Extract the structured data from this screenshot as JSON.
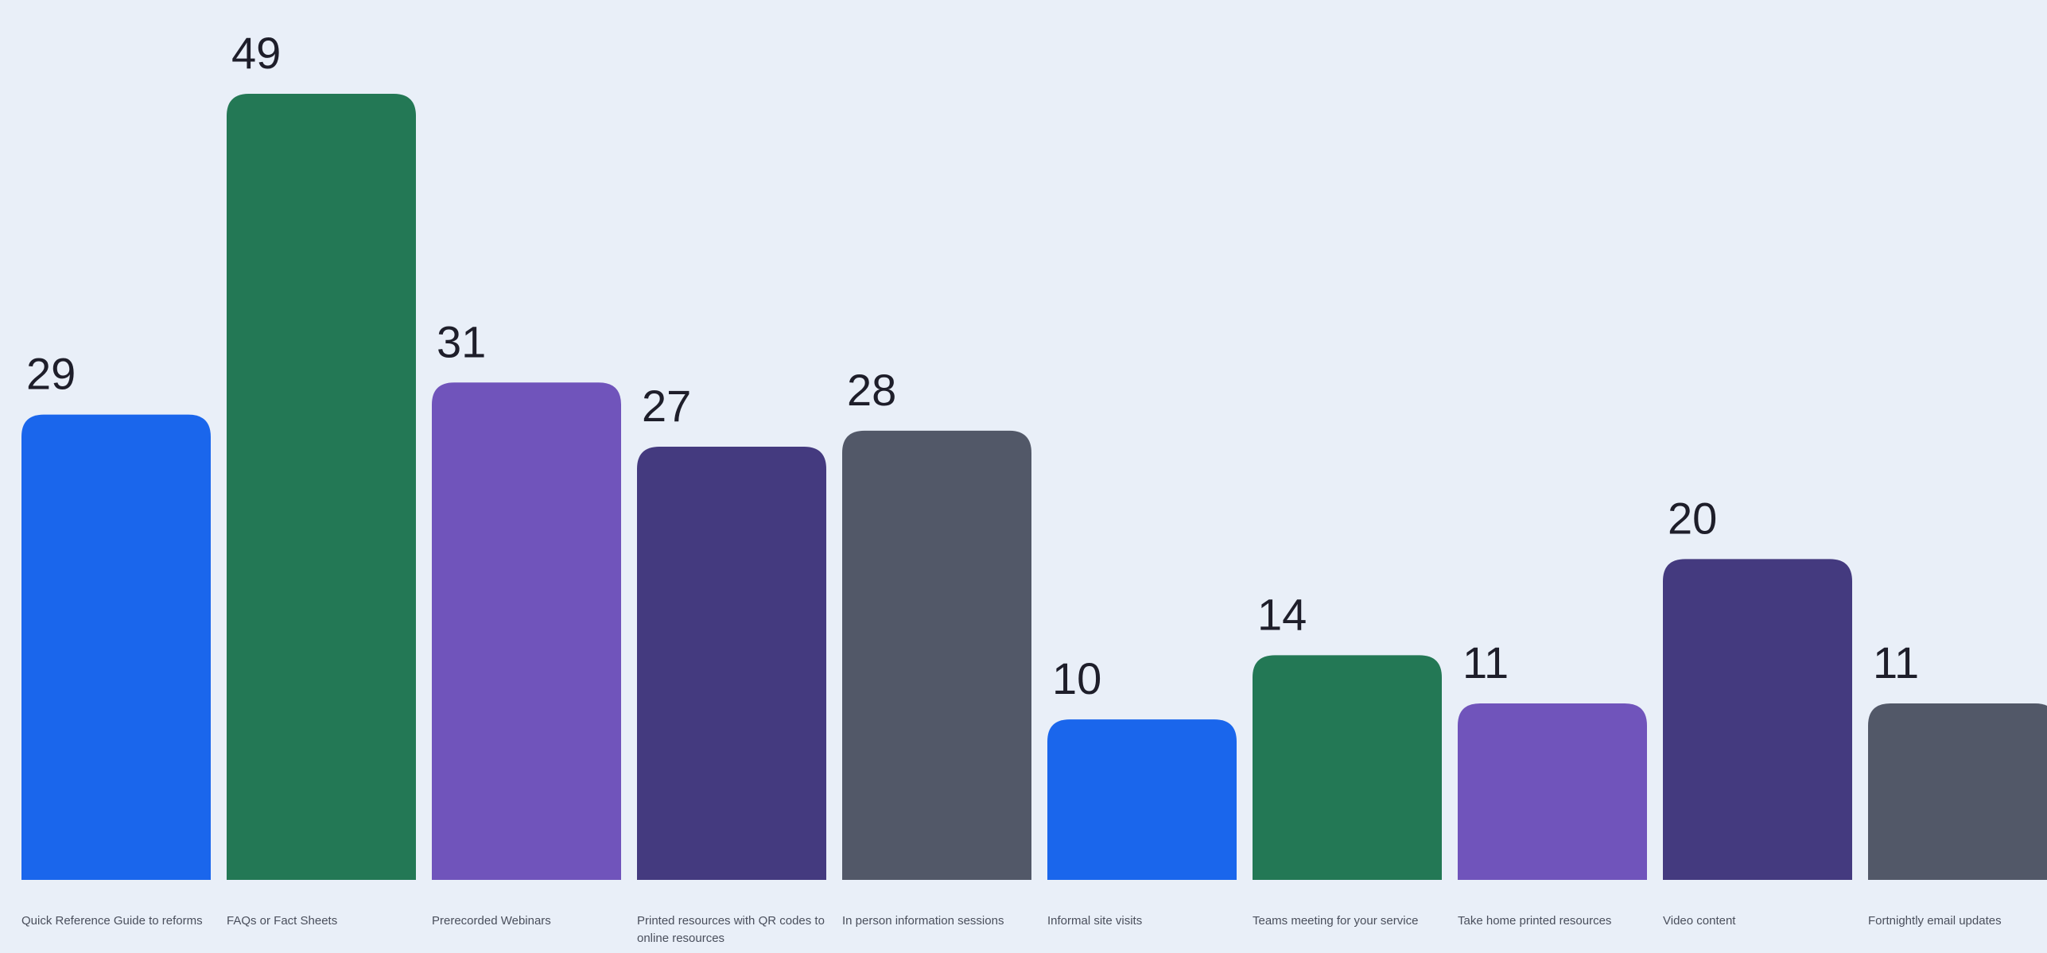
{
  "chart_data": {
    "type": "bar",
    "categories": [
      "Quick Reference Guide to reforms",
      "FAQs or Fact Sheets",
      "Prerecorded Webinars",
      "Printed resources with QR codes to online resources",
      "In person information sessions",
      "Informal site visits",
      "Teams meeting for your service",
      "Take home printed resources",
      "Video content",
      "Fortnightly email updates"
    ],
    "values": [
      29,
      49,
      31,
      27,
      28,
      10,
      14,
      11,
      20,
      11
    ],
    "bar_colors": [
      "#1a66ec",
      "#237855",
      "#7054bb",
      "#443a7f",
      "#525868",
      "#1a66ec",
      "#237855",
      "#7054bb",
      "#443a7f",
      "#525868"
    ],
    "ylim": [
      0,
      49
    ],
    "grid": false,
    "legend": "none",
    "title": "",
    "xlabel": "",
    "ylabel": ""
  },
  "colors": {
    "background": "#e9eff8",
    "value_text": "#1e1e2a",
    "category_text": "#4a4f5c"
  }
}
